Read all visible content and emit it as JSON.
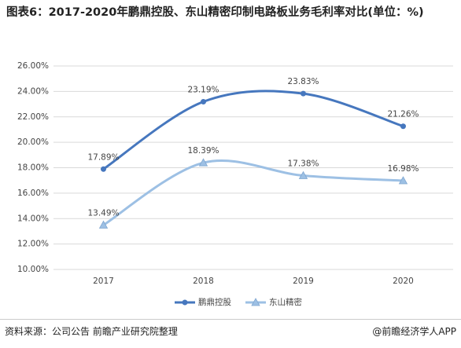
{
  "chart_data": {
    "type": "line",
    "title": "图表6：2017-2020年鹏鼎控股、东山精密印制电路板业务毛利率对比(单位：%)",
    "categories": [
      "2017",
      "2018",
      "2019",
      "2020"
    ],
    "series": [
      {
        "name": "鹏鼎控股",
        "color": "#4677be",
        "marker": "circle",
        "values": [
          17.89,
          23.19,
          23.83,
          21.26
        ],
        "value_labels": [
          "17.89%",
          "23.19%",
          "23.83%",
          "21.26%"
        ]
      },
      {
        "name": "东山精密",
        "color": "#9dc0e4",
        "marker": "triangle",
        "values": [
          13.49,
          18.39,
          17.38,
          16.98
        ],
        "value_labels": [
          "13.49%",
          "18.39%",
          "17.38%",
          "16.98%"
        ]
      }
    ],
    "ylim": [
      10,
      26
    ],
    "yticks": [
      {
        "value": 10,
        "label": "10.00%"
      },
      {
        "value": 12,
        "label": "12.00%"
      },
      {
        "value": 14,
        "label": "14.00%"
      },
      {
        "value": 16,
        "label": "16.00%"
      },
      {
        "value": 18,
        "label": "18.00%"
      },
      {
        "value": 20,
        "label": "20.00%"
      },
      {
        "value": 22,
        "label": "22.00%"
      },
      {
        "value": 24,
        "label": "24.00%"
      },
      {
        "value": 26,
        "label": "26.00%"
      }
    ],
    "grid": true,
    "legend": "bottom",
    "source": "资料来源：公司公告 前瞻产业研究院整理",
    "brand": "@前瞻经济学人APP"
  }
}
